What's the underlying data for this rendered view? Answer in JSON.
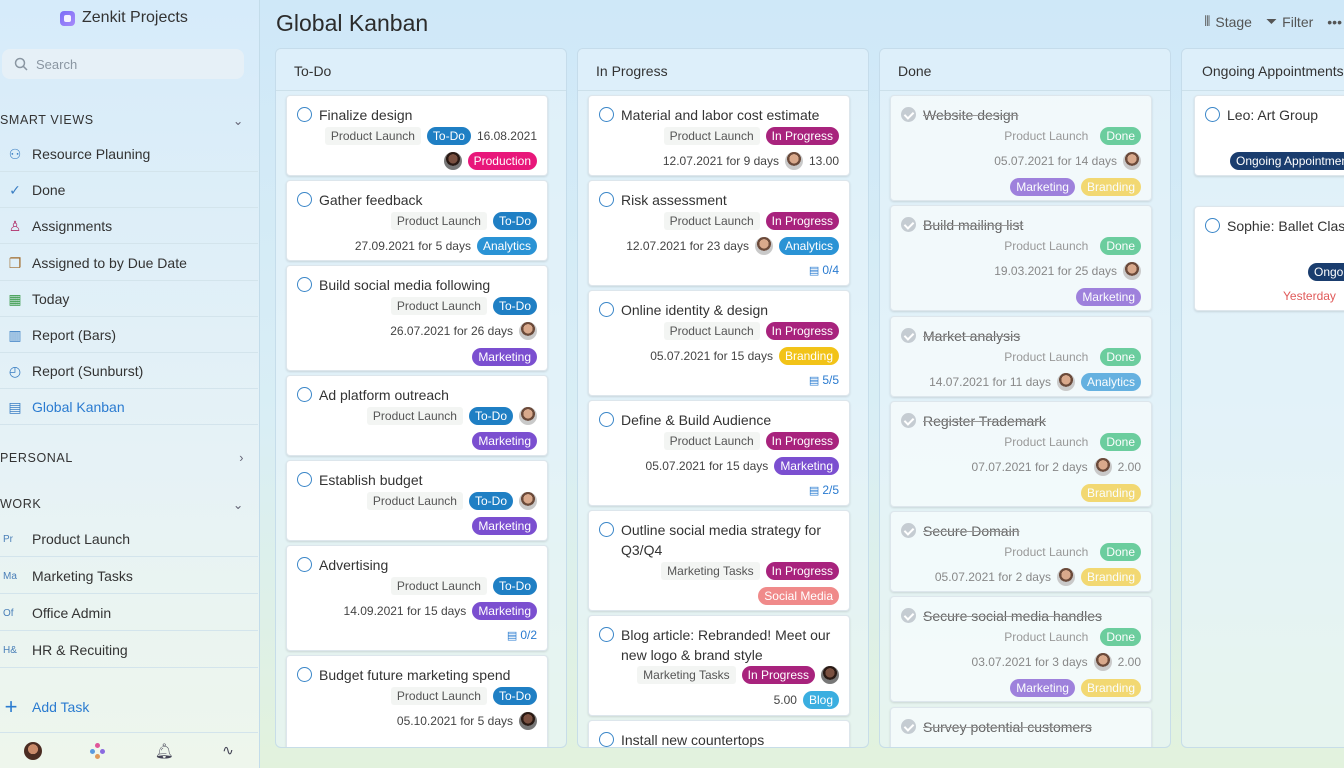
{
  "app": {
    "name": "Zenkit Projects"
  },
  "search": {
    "placeholder": "Search"
  },
  "sidebar": {
    "smart_views_label": "SMART VIEWS",
    "smart_views": [
      {
        "label": "Resource Plauning",
        "icon": "resource-icon"
      },
      {
        "label": "Done",
        "icon": "check-icon"
      },
      {
        "label": "Assignments",
        "icon": "person-icon"
      },
      {
        "label": "Assigned to by Due Date",
        "icon": "stack-icon"
      },
      {
        "label": "Today",
        "icon": "calendar-icon"
      },
      {
        "label": "Report (Bars)",
        "icon": "bar-chart-icon"
      },
      {
        "label": "Report (Sunburst)",
        "icon": "sunburst-icon"
      },
      {
        "label": "Global Kanban",
        "icon": "kanban-icon"
      }
    ],
    "personal_label": "PERSONAL",
    "work_label": "WORK",
    "work_items": [
      {
        "abbr": "Pr",
        "label": "Product Launch"
      },
      {
        "abbr": "Ma",
        "label": "Marketing Tasks"
      },
      {
        "abbr": "Of",
        "label": "Office Admin"
      },
      {
        "abbr": "H&",
        "label": "HR & Recuiting"
      }
    ],
    "add_task": "Add Task"
  },
  "header": {
    "title": "Global Kanban",
    "stage": "Stage",
    "filter": "Filter",
    "more": "•••"
  },
  "colors": {
    "todo": "#1f7fc4",
    "in_progress": "#a8237d",
    "done": "#3fbf7f",
    "production": "#e8177a",
    "analytics": "#2a93d5",
    "marketing": "#7b4fd0",
    "branding": "#f2c318",
    "social": "#f08a8a",
    "blog": "#3aaee0",
    "ongoing": "#1a3d6e"
  },
  "columns": {
    "todo": {
      "title": "To-Do",
      "cards": [
        {
          "title": "Finalize design",
          "project": "Product Launch",
          "status": "To-Do",
          "date": "16.08.2021",
          "tag": "Production"
        },
        {
          "title": "Gather feedback",
          "project": "Product Launch",
          "status": "To-Do",
          "date": "27.09.2021 for 5 days",
          "tag": "Analytics"
        },
        {
          "title": "Build social media following",
          "project": "Product Launch",
          "status": "To-Do",
          "date": "26.07.2021 for 26 days",
          "tag": "Marketing"
        },
        {
          "title": "Ad platform outreach",
          "project": "Product Launch",
          "status": "To-Do",
          "tag": "Marketing"
        },
        {
          "title": "Establish budget",
          "project": "Product Launch",
          "status": "To-Do",
          "tag": "Marketing"
        },
        {
          "title": "Advertising",
          "project": "Product Launch",
          "status": "To-Do",
          "date": "14.09.2021 for 15 days",
          "tag": "Marketing",
          "subtasks": "0/2"
        },
        {
          "title": "Budget future marketing spend",
          "project": "Product Launch",
          "status": "To-Do",
          "date": "05.10.2021 for 5 days"
        }
      ]
    },
    "in_progress": {
      "title": "In Progress",
      "cards": [
        {
          "title": "Material and labor cost estimate",
          "project": "Product Launch",
          "status": "In Progress",
          "date": "12.07.2021 for 9 days",
          "value": "13.00"
        },
        {
          "title": "Risk assessment",
          "project": "Product Launch",
          "status": "In Progress",
          "date": "12.07.2021 for 23 days",
          "tag": "Analytics",
          "subtasks": "0/4"
        },
        {
          "title": "Online identity & design",
          "project": "Product Launch",
          "status": "In Progress",
          "date": "05.07.2021 for 15 days",
          "tag": "Branding",
          "subtasks": "5/5"
        },
        {
          "title": "Define & Build Audience",
          "project": "Product Launch",
          "status": "In Progress",
          "date": "05.07.2021 for 15 days",
          "tag": "Marketing",
          "subtasks": "2/5"
        },
        {
          "title": "Outline social media strategy for Q3/Q4",
          "project": "Marketing Tasks",
          "status": "In Progress",
          "tag": "Social Media"
        },
        {
          "title": "Blog article: Rebranded! Meet our new logo & brand style",
          "project": "Marketing Tasks",
          "status": "In Progress",
          "value": "5.00",
          "tag": "Blog"
        },
        {
          "title": "Install new countertops"
        }
      ]
    },
    "done": {
      "title": "Done",
      "cards": [
        {
          "title": "Website design",
          "project": "Product Launch",
          "status": "Done",
          "date": "05.07.2021 for 14 days",
          "tag": "Marketing",
          "tag2": "Branding"
        },
        {
          "title": "Build mailing list",
          "project": "Product Launch",
          "status": "Done",
          "date": "19.03.2021 for 25 days",
          "tag": "Marketing"
        },
        {
          "title": "Market analysis",
          "project": "Product Launch",
          "status": "Done",
          "date": "14.07.2021 for 11 days",
          "tag": "Analytics"
        },
        {
          "title": "Register Trademark",
          "project": "Product Launch",
          "status": "Done",
          "date": "07.07.2021 for 2 days",
          "value": "2.00",
          "tag": "Branding"
        },
        {
          "title": "Secure Domain",
          "project": "Product Launch",
          "status": "Done",
          "date": "05.07.2021 for 2 days",
          "tag": "Branding"
        },
        {
          "title": "Secure social media handles",
          "project": "Product Launch",
          "status": "Done",
          "date": "03.07.2021 for 3 days",
          "value": "2.00",
          "tag": "Marketing",
          "tag2": "Branding"
        },
        {
          "title": "Survey potential customers"
        }
      ]
    },
    "ongoing": {
      "title": "Ongoing Appointments",
      "cards": [
        {
          "title": "Leo: Art Group",
          "tag": "Ongoing Appointments"
        },
        {
          "title": "Sophie: Ballet Class",
          "tag": "Ongoing",
          "due": "Yesterday"
        }
      ]
    }
  }
}
